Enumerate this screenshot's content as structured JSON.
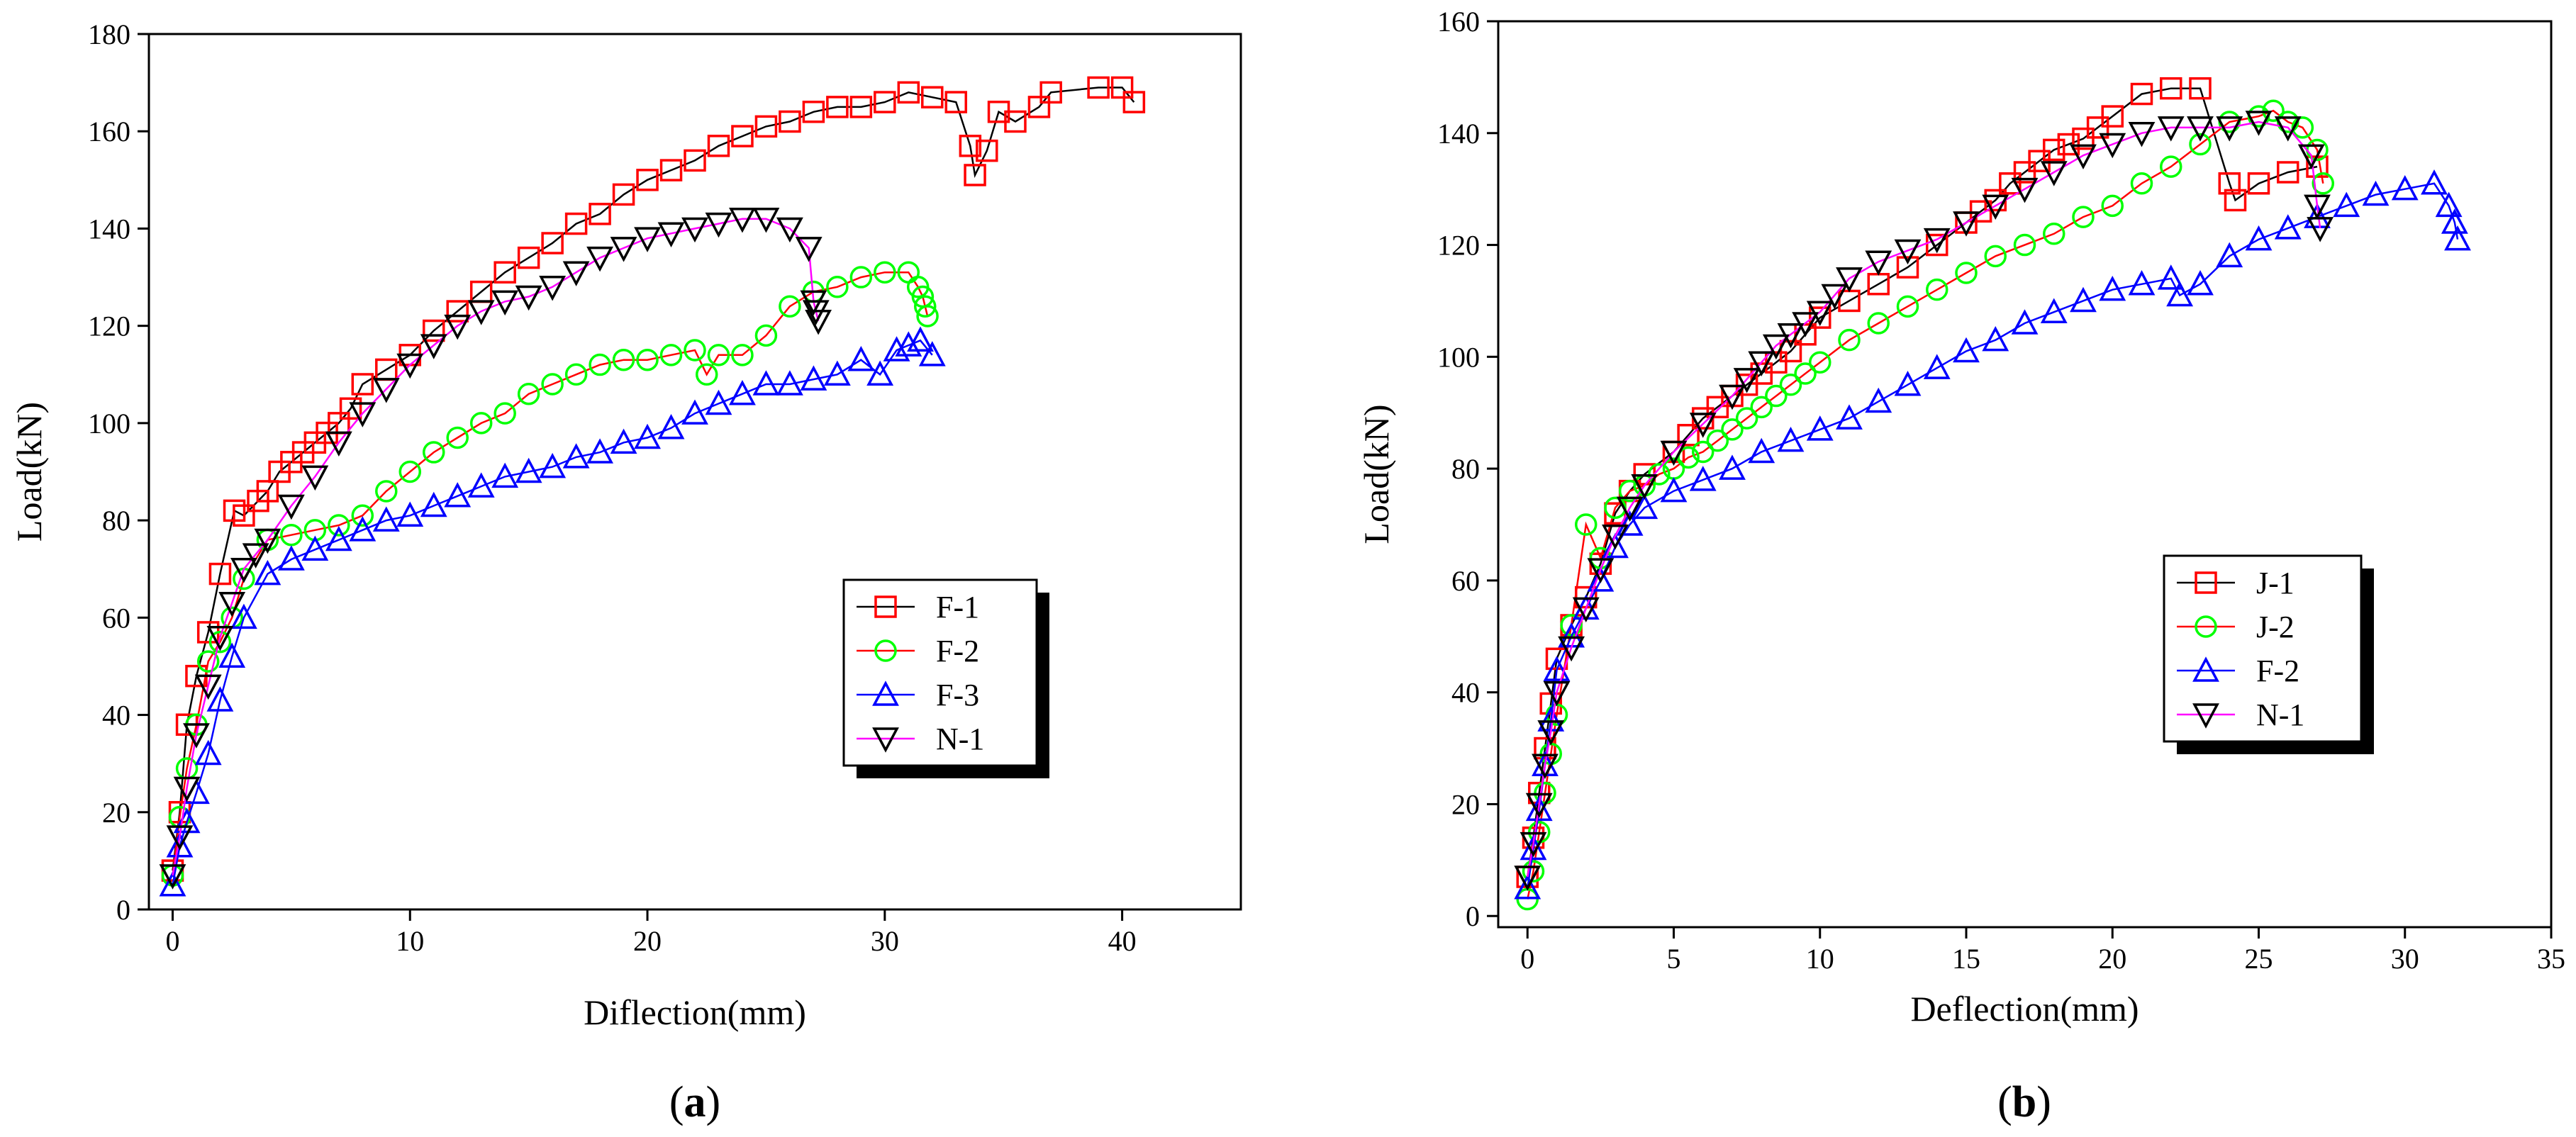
{
  "chart_data": [
    {
      "type": "line",
      "panel_label": "(a)",
      "panel_letter": "a",
      "xlabel": "Diflection(mm)",
      "ylabel": "Load(kN)",
      "xlim": [
        -1,
        45
      ],
      "ylim": [
        0,
        180
      ],
      "xticks": [
        0,
        10,
        20,
        30,
        40
      ],
      "yticks": [
        0,
        20,
        40,
        60,
        80,
        100,
        120,
        140,
        160,
        180
      ],
      "legend_position": "middle-right",
      "series": [
        {
          "name": "F-1",
          "marker": "square",
          "color": "#ff0000",
          "line_color": "#000000",
          "x": [
            0,
            0.3,
            0.6,
            1.0,
            1.5,
            2.0,
            2.6,
            3.0,
            3.6,
            4.0,
            4.5,
            5.0,
            5.5,
            6.0,
            6.5,
            7.0,
            7.5,
            8.0,
            9.0,
            10.0,
            11.0,
            12.0,
            13.0,
            14.0,
            15.0,
            16.0,
            17.0,
            18.0,
            19.0,
            20.0,
            21.0,
            22.0,
            23.0,
            24.0,
            25.0,
            26.0,
            27.0,
            28.0,
            29.0,
            30.0,
            31.0,
            32.0,
            33.0,
            33.6,
            33.8,
            34.3,
            34.8,
            35.5,
            36.5,
            37.0,
            39.0,
            40.0,
            40.5
          ],
          "y": [
            8,
            20,
            38,
            48,
            57,
            69,
            82,
            81,
            84,
            86,
            90,
            92,
            94,
            96,
            98,
            100,
            103,
            108,
            111,
            114,
            119,
            123,
            127,
            131,
            134,
            137,
            141,
            143,
            147,
            150,
            152,
            154,
            157,
            159,
            161,
            162,
            164,
            165,
            165,
            166,
            168,
            167,
            166,
            157,
            151,
            156,
            164,
            162,
            165,
            168,
            169,
            169,
            166
          ]
        },
        {
          "name": "F-2",
          "marker": "circle",
          "color": "#00ff00",
          "line_color": "#ff0000",
          "x": [
            0,
            0.3,
            0.6,
            1.0,
            1.5,
            2.0,
            2.5,
            3.0,
            4.0,
            5.0,
            6.0,
            7.0,
            8.0,
            9.0,
            10.0,
            11.0,
            12.0,
            13.0,
            14.0,
            15.0,
            16.0,
            17.0,
            18.0,
            19.0,
            20.0,
            21.0,
            22.0,
            22.5,
            23.0,
            24.0,
            25.0,
            26.0,
            27.0,
            28.0,
            29.0,
            30.0,
            31.0,
            31.4,
            31.6,
            31.7,
            31.8
          ],
          "y": [
            7,
            19,
            29,
            38,
            51,
            55,
            60,
            68,
            76,
            77,
            78,
            79,
            81,
            86,
            90,
            94,
            97,
            100,
            102,
            106,
            108,
            110,
            112,
            113,
            113,
            114,
            115,
            110,
            114,
            114,
            118,
            124,
            127,
            128,
            130,
            131,
            131,
            128,
            126,
            124,
            122
          ]
        },
        {
          "name": "F-3",
          "marker": "triangle-up",
          "color": "#0000ff",
          "line_color": "#0000ff",
          "x": [
            0,
            0.3,
            0.6,
            1.0,
            1.5,
            2.0,
            2.5,
            3.0,
            4.0,
            5.0,
            6.0,
            7.0,
            8.0,
            9.0,
            10.0,
            11.0,
            12.0,
            13.0,
            14.0,
            15.0,
            16.0,
            17.0,
            18.0,
            19.0,
            20.0,
            21.0,
            22.0,
            23.0,
            24.0,
            25.0,
            26.0,
            27.0,
            28.0,
            29.0,
            29.8,
            30.5,
            31.0,
            31.5,
            32.0
          ],
          "y": [
            5,
            13,
            18,
            24,
            32,
            43,
            52,
            60,
            69,
            72,
            74,
            76,
            78,
            80,
            81,
            83,
            85,
            87,
            89,
            90,
            91,
            93,
            94,
            96,
            97,
            99,
            102,
            104,
            106,
            108,
            108,
            109,
            110,
            113,
            110,
            115,
            116,
            117,
            114
          ]
        },
        {
          "name": "N-1",
          "marker": "triangle-down",
          "color": "#000000",
          "line_color": "#ff00ff",
          "x": [
            0,
            0.3,
            0.6,
            1.0,
            1.5,
            2.0,
            2.5,
            3.0,
            3.5,
            4.0,
            5.0,
            6.0,
            7.0,
            8.0,
            9.0,
            10.0,
            11.0,
            12.0,
            13.0,
            14.0,
            15.0,
            16.0,
            17.0,
            18.0,
            19.0,
            20.0,
            21.0,
            22.0,
            23.0,
            24.0,
            25.0,
            26.0,
            26.8,
            27.0,
            27.1,
            27.2
          ],
          "y": [
            7,
            15,
            25,
            36,
            46,
            56,
            63,
            70,
            73,
            76,
            83,
            89,
            96,
            102,
            107,
            112,
            116,
            120,
            123,
            125,
            126,
            128,
            131,
            134,
            136,
            138,
            139,
            140,
            141,
            142,
            142,
            140,
            136,
            125,
            123,
            121
          ]
        }
      ]
    },
    {
      "type": "line",
      "panel_label": "(b)",
      "panel_letter": "b",
      "xlabel": "Deflection(mm)",
      "ylabel": "Load(kN)",
      "xlim": [
        -1,
        35
      ],
      "ylim": [
        -2,
        160
      ],
      "xticks": [
        0,
        5,
        10,
        15,
        20,
        25,
        30,
        35
      ],
      "yticks": [
        0,
        20,
        40,
        60,
        80,
        100,
        120,
        140,
        160
      ],
      "legend_position": "middle-right",
      "series": [
        {
          "name": "J-1",
          "marker": "square",
          "color": "#ff0000",
          "line_color": "#000000",
          "x": [
            0,
            0.2,
            0.4,
            0.6,
            0.8,
            1.0,
            1.5,
            2.0,
            2.5,
            3.0,
            3.5,
            4.0,
            5.0,
            5.5,
            6.0,
            6.5,
            7.0,
            7.5,
            8.0,
            8.5,
            9.0,
            9.5,
            10.0,
            11.0,
            12.0,
            13.0,
            14.0,
            15.0,
            15.5,
            16.0,
            16.5,
            17.0,
            17.5,
            18.0,
            18.5,
            19.0,
            19.5,
            20.0,
            21.0,
            22.0,
            23.0,
            24.0,
            24.2,
            25.0,
            26.0,
            27.0
          ],
          "y": [
            7,
            14,
            22,
            30,
            38,
            46,
            52,
            57,
            63,
            72,
            76,
            79,
            83,
            86,
            89,
            91,
            93,
            95,
            97,
            99,
            101,
            104,
            107,
            110,
            113,
            116,
            120,
            124,
            126,
            128,
            131,
            133,
            135,
            137,
            138,
            139,
            141,
            143,
            147,
            148,
            148,
            131,
            128,
            131,
            133,
            134
          ]
        },
        {
          "name": "J-2",
          "marker": "circle",
          "color": "#00ff00",
          "line_color": "#ff0000",
          "x": [
            0,
            0.2,
            0.4,
            0.6,
            0.8,
            1.0,
            1.5,
            2.0,
            2.5,
            3.0,
            3.5,
            4.0,
            4.5,
            5.0,
            5.5,
            6.0,
            6.5,
            7.0,
            7.5,
            8.0,
            8.5,
            9.0,
            9.5,
            10.0,
            11.0,
            12.0,
            13.0,
            14.0,
            15.0,
            16.0,
            17.0,
            18.0,
            19.0,
            20.0,
            21.0,
            22.0,
            23.0,
            24.0,
            25.0,
            25.5,
            26.0,
            26.5,
            27.0,
            27.2
          ],
          "y": [
            3,
            8,
            15,
            22,
            29,
            36,
            52,
            70,
            64,
            73,
            76,
            77,
            79,
            80,
            82,
            83,
            85,
            87,
            89,
            91,
            93,
            95,
            97,
            99,
            103,
            106,
            109,
            112,
            115,
            118,
            120,
            122,
            125,
            127,
            131,
            134,
            138,
            142,
            143,
            144,
            142,
            141,
            137,
            131
          ]
        },
        {
          "name": "F-2",
          "marker": "triangle-up",
          "color": "#0000ff",
          "line_color": "#0000ff",
          "x": [
            0,
            0.2,
            0.4,
            0.6,
            0.8,
            1.0,
            1.5,
            2.0,
            2.5,
            3.0,
            3.5,
            4.0,
            5.0,
            6.0,
            7.0,
            8.0,
            9.0,
            10.0,
            11.0,
            12.0,
            13.0,
            14.0,
            15.0,
            16.0,
            17.0,
            18.0,
            19.0,
            20.0,
            21.0,
            22.0,
            22.3,
            23.0,
            24.0,
            25.0,
            26.0,
            27.0,
            28.0,
            29.0,
            30.0,
            31.0,
            31.5,
            31.7,
            31.8
          ],
          "y": [
            5,
            12,
            19,
            27,
            35,
            44,
            50,
            55,
            60,
            66,
            70,
            73,
            76,
            78,
            80,
            83,
            85,
            87,
            89,
            92,
            95,
            98,
            101,
            103,
            106,
            108,
            110,
            112,
            113,
            114,
            111,
            113,
            118,
            121,
            123,
            125,
            127,
            129,
            130,
            131,
            127,
            124,
            121
          ]
        },
        {
          "name": "N-1",
          "marker": "triangle-down",
          "color": "#000000",
          "line_color": "#ff00ff",
          "x": [
            0,
            0.2,
            0.4,
            0.6,
            0.8,
            1.0,
            1.5,
            2.0,
            2.5,
            3.0,
            3.5,
            4.0,
            5.0,
            6.0,
            7.0,
            7.5,
            8.0,
            8.5,
            9.0,
            9.5,
            10.0,
            10.5,
            11.0,
            12.0,
            13.0,
            14.0,
            15.0,
            16.0,
            17.0,
            18.0,
            19.0,
            20.0,
            21.0,
            22.0,
            23.0,
            24.0,
            25.0,
            26.0,
            26.8,
            27.0,
            27.1
          ],
          "y": [
            7,
            13,
            20,
            27,
            33,
            40,
            48,
            55,
            62,
            68,
            73,
            77,
            83,
            88,
            93,
            96,
            99,
            102,
            104,
            106,
            108,
            111,
            114,
            117,
            119,
            121,
            124,
            127,
            130,
            133,
            136,
            138,
            140,
            141,
            141,
            141,
            142,
            141,
            136,
            127,
            123
          ]
        }
      ]
    }
  ]
}
